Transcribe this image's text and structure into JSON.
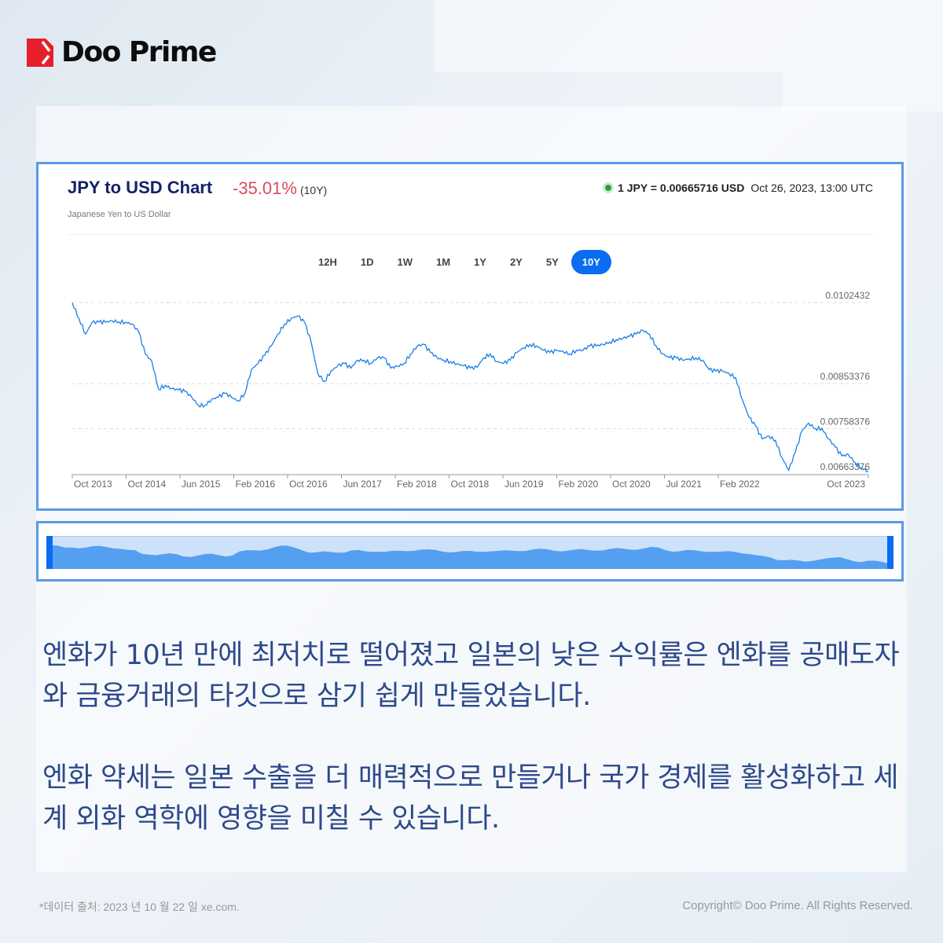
{
  "brand": {
    "name": "Doo Prime",
    "colors": {
      "red": "#e5202a",
      "text": "#0d0d0d"
    }
  },
  "card": {
    "title": "JPY to USD Chart",
    "change": "-35.01%",
    "change_period": "(10Y)",
    "subtitle": "Japanese Yen to US Dollar",
    "rate": "1 JPY = 0.00665716 USD",
    "timestamp": "Oct 26, 2023, 13:00 UTC",
    "ranges": [
      {
        "label": "12H"
      },
      {
        "label": "1D"
      },
      {
        "label": "1W"
      },
      {
        "label": "1M"
      },
      {
        "label": "1Y"
      },
      {
        "label": "2Y"
      },
      {
        "label": "5Y"
      },
      {
        "label": "10Y",
        "active": true
      }
    ]
  },
  "chart_data": {
    "type": "line",
    "title": "JPY to USD Chart",
    "line_color": "#1a7fe8",
    "grid": "horizontal dashed",
    "y_ticks": [
      "0.0102432",
      "0.00853376",
      "0.00758376",
      "0.00663376"
    ],
    "y_tick_values": [
      0.0102432,
      0.00853376,
      0.00758376,
      0.00663376
    ],
    "ylim": [
      0.00663376,
      0.0102432
    ],
    "x_ticks": [
      "Oct 2013",
      "Oct 2014",
      "Jun 2015",
      "Feb 2016",
      "Oct 2016",
      "Jun 2017",
      "Feb 2018",
      "Oct 2018",
      "Jun 2019",
      "Feb 2020",
      "Oct 2020",
      "Jul 2021",
      "Feb 2022",
      "Oct 2023"
    ],
    "x": [
      "2013-10",
      "2013-11",
      "2013-12",
      "2014-01",
      "2014-02",
      "2014-03",
      "2014-04",
      "2014-05",
      "2014-06",
      "2014-07",
      "2014-08",
      "2014-09",
      "2014-10",
      "2014-11",
      "2014-12",
      "2015-01",
      "2015-02",
      "2015-03",
      "2015-04",
      "2015-05",
      "2015-06",
      "2015-07",
      "2015-08",
      "2015-09",
      "2015-10",
      "2015-11",
      "2015-12",
      "2016-01",
      "2016-02",
      "2016-03",
      "2016-04",
      "2016-05",
      "2016-06",
      "2016-07",
      "2016-08",
      "2016-09",
      "2016-10",
      "2016-11",
      "2016-12",
      "2017-01",
      "2017-02",
      "2017-03",
      "2017-04",
      "2017-05",
      "2017-06",
      "2017-07",
      "2017-08",
      "2017-09",
      "2017-10",
      "2017-11",
      "2017-12",
      "2018-01",
      "2018-02",
      "2018-03",
      "2018-04",
      "2018-05",
      "2018-06",
      "2018-07",
      "2018-08",
      "2018-09",
      "2018-10",
      "2018-11",
      "2018-12",
      "2019-01",
      "2019-02",
      "2019-03",
      "2019-04",
      "2019-05",
      "2019-06",
      "2019-07",
      "2019-08",
      "2019-09",
      "2019-10",
      "2019-11",
      "2019-12",
      "2020-01",
      "2020-02",
      "2020-03",
      "2020-04",
      "2020-05",
      "2020-06",
      "2020-07",
      "2020-08",
      "2020-09",
      "2020-10",
      "2020-11",
      "2020-12",
      "2021-01",
      "2021-02",
      "2021-03",
      "2021-04",
      "2021-05",
      "2021-06",
      "2021-07",
      "2021-08",
      "2021-09",
      "2021-10",
      "2021-11",
      "2021-12",
      "2022-01",
      "2022-02",
      "2022-03",
      "2022-04",
      "2022-05",
      "2022-06",
      "2022-07",
      "2022-08",
      "2022-09",
      "2022-10",
      "2022-11",
      "2022-12",
      "2023-01",
      "2023-02",
      "2023-03",
      "2023-04",
      "2023-05",
      "2023-06",
      "2023-07",
      "2023-08",
      "2023-09",
      "2023-10"
    ],
    "y": [
      0.01024,
      0.00991,
      0.00958,
      0.00983,
      0.00983,
      0.00983,
      0.00986,
      0.00984,
      0.00983,
      0.00979,
      0.00963,
      0.00916,
      0.009,
      0.00842,
      0.0085,
      0.00843,
      0.0084,
      0.00837,
      0.00825,
      0.00808,
      0.00808,
      0.0082,
      0.00825,
      0.00833,
      0.00825,
      0.00817,
      0.00833,
      0.00883,
      0.00896,
      0.00913,
      0.00933,
      0.00958,
      0.00979,
      0.00991,
      0.00996,
      0.00983,
      0.00941,
      0.00875,
      0.00858,
      0.0088,
      0.00891,
      0.00896,
      0.00886,
      0.00903,
      0.00903,
      0.00896,
      0.00908,
      0.00908,
      0.00886,
      0.0089,
      0.00896,
      0.00916,
      0.00933,
      0.00936,
      0.00919,
      0.00908,
      0.00903,
      0.009,
      0.00895,
      0.00891,
      0.00886,
      0.00888,
      0.00908,
      0.00916,
      0.009,
      0.00896,
      0.00903,
      0.00919,
      0.00929,
      0.00936,
      0.00933,
      0.00924,
      0.00919,
      0.00923,
      0.00921,
      0.00916,
      0.00924,
      0.00924,
      0.00933,
      0.00933,
      0.00936,
      0.00941,
      0.00946,
      0.00949,
      0.00953,
      0.00958,
      0.00966,
      0.00958,
      0.00933,
      0.00916,
      0.00908,
      0.00908,
      0.00903,
      0.00906,
      0.00908,
      0.00903,
      0.00883,
      0.0088,
      0.0088,
      0.00875,
      0.00866,
      0.0082,
      0.00783,
      0.00764,
      0.00737,
      0.00743,
      0.00734,
      0.00697,
      0.00671,
      0.00709,
      0.00754,
      0.0077,
      0.00759,
      0.00759,
      0.00737,
      0.0072,
      0.00701,
      0.00704,
      0.00687,
      0.00676,
      0.00668
    ]
  },
  "navigator": {
    "fill": "#549ff0",
    "background": "#cde2f9",
    "handle": "#0a6cf0"
  },
  "body": {
    "paragraph1": "엔화가 10년 만에 최저치로 떨어졌고 일본의 낮은 수익률은 엔화를 공매도자와 금융거래의 타깃으로 삼기 쉽게 만들었습니다.",
    "paragraph2": "엔화 약세는 일본 수출을 더 매력적으로 만들거나 국가 경제를 활성화하고 세계 외화 역학에 영향을 미칠 수 있습니다."
  },
  "footer": {
    "source": "*데이터 출처: 2023 년 10 월 22 일 xe.com.",
    "copyright": "Copyright© Doo Prime. All Rights Reserved."
  }
}
